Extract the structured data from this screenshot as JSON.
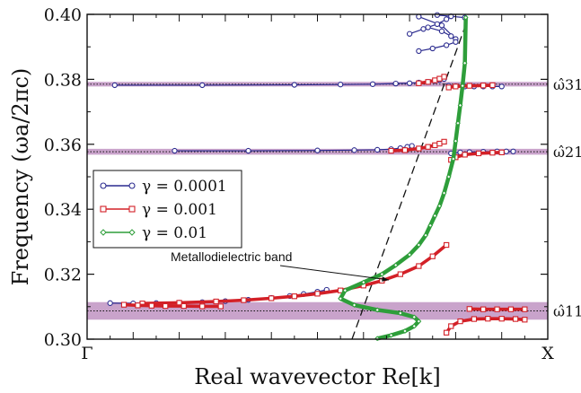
{
  "chart_data": {
    "type": "line",
    "title": "",
    "xlabel": "Real wavevector Re[k]",
    "ylabel": "Frequency (ωa/2πc)",
    "xlim": [
      0,
      1
    ],
    "ylim": [
      0.3,
      0.4
    ],
    "x_tick_labels": [
      "Γ",
      "X"
    ],
    "y_ticks": [
      0.3,
      0.32,
      0.34,
      0.36,
      0.38,
      0.4
    ],
    "y_tick_labels": [
      "0.30",
      "0.32",
      "0.34",
      "0.36",
      "0.38",
      "0.40"
    ],
    "grid": false,
    "legend_position": "left",
    "bands": [
      {
        "label": "ω̂31",
        "center": 0.3785,
        "halfwidth": 0.0007
      },
      {
        "label": "ω̂21",
        "center": 0.3577,
        "halfwidth": 0.0009
      },
      {
        "label": "ω̂11",
        "center": 0.3087,
        "halfwidth": 0.0027
      }
    ],
    "series": [
      {
        "name": "γ = 0.0001",
        "color": "#2b2b8f",
        "marker": "circle",
        "segments": [
          {
            "x": [
              0.06,
              0.25,
              0.45,
              0.55,
              0.62,
              0.67,
              0.7,
              0.72,
              0.74,
              0.755,
              0.765,
              0.775
            ],
            "y": [
              0.3782,
              0.3782,
              0.3783,
              0.3784,
              0.3785,
              0.3787,
              0.3788,
              0.379,
              0.3792,
              0.3795,
              0.3798,
              0.3801
            ]
          },
          {
            "x": [
              0.785,
              0.8,
              0.82,
              0.84,
              0.86,
              0.88,
              0.9
            ],
            "y": [
              0.378,
              0.3779,
              0.3778,
              0.3778,
              0.3778,
              0.3778,
              0.3778
            ]
          },
          {
            "x": [
              0.19,
              0.35,
              0.5,
              0.58,
              0.63,
              0.66,
              0.68,
              0.695,
              0.705
            ],
            "y": [
              0.358,
              0.358,
              0.3581,
              0.3582,
              0.3583,
              0.3585,
              0.3588,
              0.3592,
              0.3595
            ]
          },
          {
            "x": [
              0.79,
              0.81,
              0.83,
              0.86,
              0.89,
              0.91,
              0.925
            ],
            "y": [
              0.3572,
              0.3575,
              0.3576,
              0.3577,
              0.3578,
              0.3578,
              0.3578
            ]
          },
          {
            "x": [
              0.05,
              0.1,
              0.15,
              0.2,
              0.25,
              0.3,
              0.35,
              0.4,
              0.44,
              0.47,
              0.5,
              0.52
            ],
            "y": [
              0.3111,
              0.311,
              0.3111,
              0.3112,
              0.3114,
              0.3117,
              0.3121,
              0.3127,
              0.3133,
              0.3139,
              0.3146,
              0.3152
            ]
          },
          {
            "x": [
              0.72,
              0.77,
              0.8
            ],
            "y": [
              0.3993,
              0.3966,
              0.3924
            ]
          },
          {
            "x": [
              0.7,
              0.73,
              0.76,
              0.78
            ],
            "y": [
              0.394,
              0.3955,
              0.397,
              0.3985
            ]
          },
          {
            "x": [
              0.72,
              0.75,
              0.78,
              0.8
            ],
            "y": [
              0.3887,
              0.3895,
              0.3905,
              0.3915
            ]
          },
          {
            "x": [
              0.74,
              0.77,
              0.79
            ],
            "y": [
              0.396,
              0.3948,
              0.3933
            ]
          },
          {
            "x": [
              0.76,
              0.79,
              0.82
            ],
            "y": [
              0.3998,
              0.3994,
              0.399
            ]
          }
        ]
      },
      {
        "name": "γ = 0.001",
        "color": "#d32027",
        "marker": "square",
        "segments": [
          {
            "x": [
              0.12,
              0.2,
              0.28,
              0.34,
              0.4,
              0.45,
              0.5,
              0.55,
              0.6,
              0.64,
              0.68,
              0.72,
              0.75,
              0.78
            ],
            "y": [
              0.311,
              0.3112,
              0.3116,
              0.312,
              0.3126,
              0.3132,
              0.314,
              0.315,
              0.3165,
              0.318,
              0.32,
              0.3225,
              0.3255,
              0.329
            ]
          },
          {
            "x": [
              0.78,
              0.79,
              0.81,
              0.84,
              0.87,
              0.9,
              0.93,
              0.95
            ],
            "y": [
              0.302,
              0.304,
              0.3055,
              0.3062,
              0.3063,
              0.3063,
              0.3062,
              0.306
            ]
          },
          {
            "x": [
              0.66,
              0.69,
              0.72,
              0.74,
              0.755,
              0.765,
              0.775
            ],
            "y": [
              0.358,
              0.3582,
              0.3587,
              0.3592,
              0.3597,
              0.3602,
              0.3608
            ]
          },
          {
            "x": [
              0.79,
              0.8,
              0.82,
              0.85,
              0.88,
              0.9
            ],
            "y": [
              0.3552,
              0.356,
              0.3568,
              0.3572,
              0.3574,
              0.3575
            ]
          },
          {
            "x": [
              0.72,
              0.74,
              0.755,
              0.765,
              0.775
            ],
            "y": [
              0.3788,
              0.3792,
              0.3797,
              0.3802,
              0.3808
            ]
          },
          {
            "x": [
              0.785,
              0.8,
              0.83,
              0.86,
              0.88
            ],
            "y": [
              0.3775,
              0.3778,
              0.378,
              0.3781,
              0.3782
            ]
          },
          {
            "x": [
              0.08,
              0.11,
              0.14,
              0.17,
              0.21,
              0.25,
              0.29
            ],
            "y": [
              0.3106,
              0.3104,
              0.3103,
              0.3102,
              0.3102,
              0.3101,
              0.3101
            ]
          },
          {
            "x": [
              0.83,
              0.86,
              0.89,
              0.92,
              0.95
            ],
            "y": [
              0.3093,
              0.3092,
              0.3092,
              0.3092,
              0.3092
            ]
          }
        ]
      },
      {
        "name": "γ = 0.01",
        "color": "#2e9e3a",
        "marker": "diamond",
        "segments": [
          {
            "x": [
              0.63,
              0.66,
              0.69,
              0.71,
              0.72,
              0.71,
              0.68,
              0.63,
              0.58,
              0.55,
              0.56,
              0.6,
              0.64,
              0.67,
              0.7,
              0.72,
              0.735,
              0.745,
              0.755,
              0.765,
              0.775,
              0.785,
              0.795,
              0.8,
              0.805,
              0.81,
              0.815,
              0.82,
              0.822
            ],
            "y": [
              0.3002,
              0.3012,
              0.3025,
              0.304,
              0.3055,
              0.3068,
              0.308,
              0.309,
              0.3105,
              0.3125,
              0.315,
              0.3175,
              0.32,
              0.3228,
              0.326,
              0.329,
              0.332,
              0.335,
              0.338,
              0.341,
              0.345,
              0.35,
              0.3555,
              0.361,
              0.3665,
              0.372,
              0.378,
              0.385,
              0.399
            ]
          }
        ]
      }
    ],
    "annotation": {
      "text": "Metallodielectric band",
      "line": {
        "x": [
          0.575,
          0.825
        ],
        "y": [
          0.3,
          0.398
        ]
      }
    }
  }
}
